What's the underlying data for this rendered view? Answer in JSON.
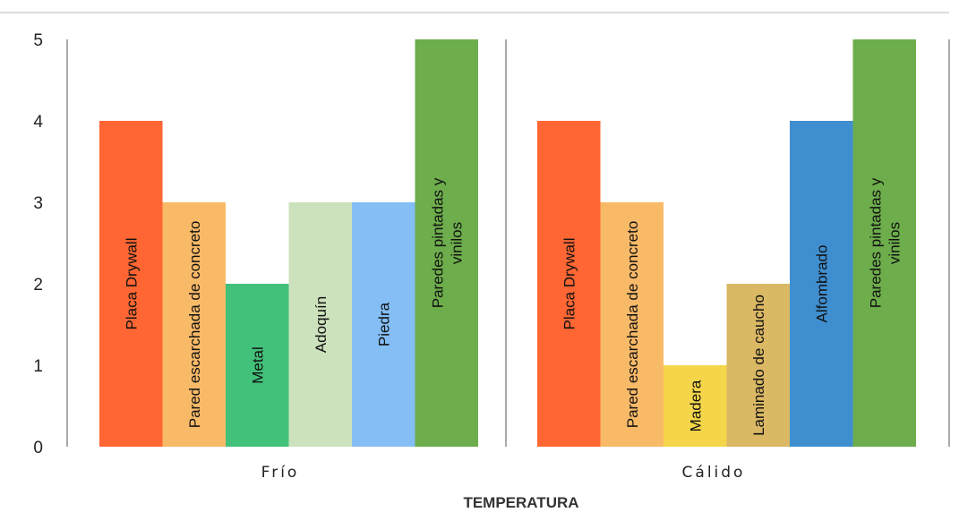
{
  "chart_data": {
    "type": "bar",
    "xlabel": "TEMPERATURA",
    "ylim": [
      0,
      5
    ],
    "yticks": [
      "0",
      "1",
      "2",
      "3",
      "4",
      "5"
    ],
    "grid": false,
    "groups": [
      {
        "name": "Frío",
        "bars": [
          {
            "label": [
              "Placa Drywall"
            ],
            "value": 4,
            "color": "#FF6633"
          },
          {
            "label": [
              "Pared escarchada de concreto"
            ],
            "value": 3,
            "color": "#F9BA68"
          },
          {
            "label": [
              "Metal"
            ],
            "value": 2,
            "color": "#42C17A"
          },
          {
            "label": [
              "Adoquín"
            ],
            "value": 3,
            "color": "#CCE2BC"
          },
          {
            "label": [
              "Piedra"
            ],
            "value": 3,
            "color": "#84BEF5"
          },
          {
            "label": [
              "Paredes pintadas y",
              "vinilos"
            ],
            "value": 5,
            "color": "#6DAD4B"
          }
        ]
      },
      {
        "name": "Cálido",
        "bars": [
          {
            "label": [
              "Placa Drywall"
            ],
            "value": 4,
            "color": "#FF6633"
          },
          {
            "label": [
              "Pared escarchada de concreto"
            ],
            "value": 3,
            "color": "#F9BA68"
          },
          {
            "label": [
              "Madera"
            ],
            "value": 1,
            "color": "#F5D54A"
          },
          {
            "label": [
              "Laminado de caucho"
            ],
            "value": 2,
            "color": "#DAB864"
          },
          {
            "label": [
              "Alfombrado"
            ],
            "value": 4,
            "color": "#3F8FD0"
          },
          {
            "label": [
              "Paredes pintadas y",
              "vinilos"
            ],
            "value": 5,
            "color": "#6DAD4B"
          }
        ]
      }
    ]
  }
}
